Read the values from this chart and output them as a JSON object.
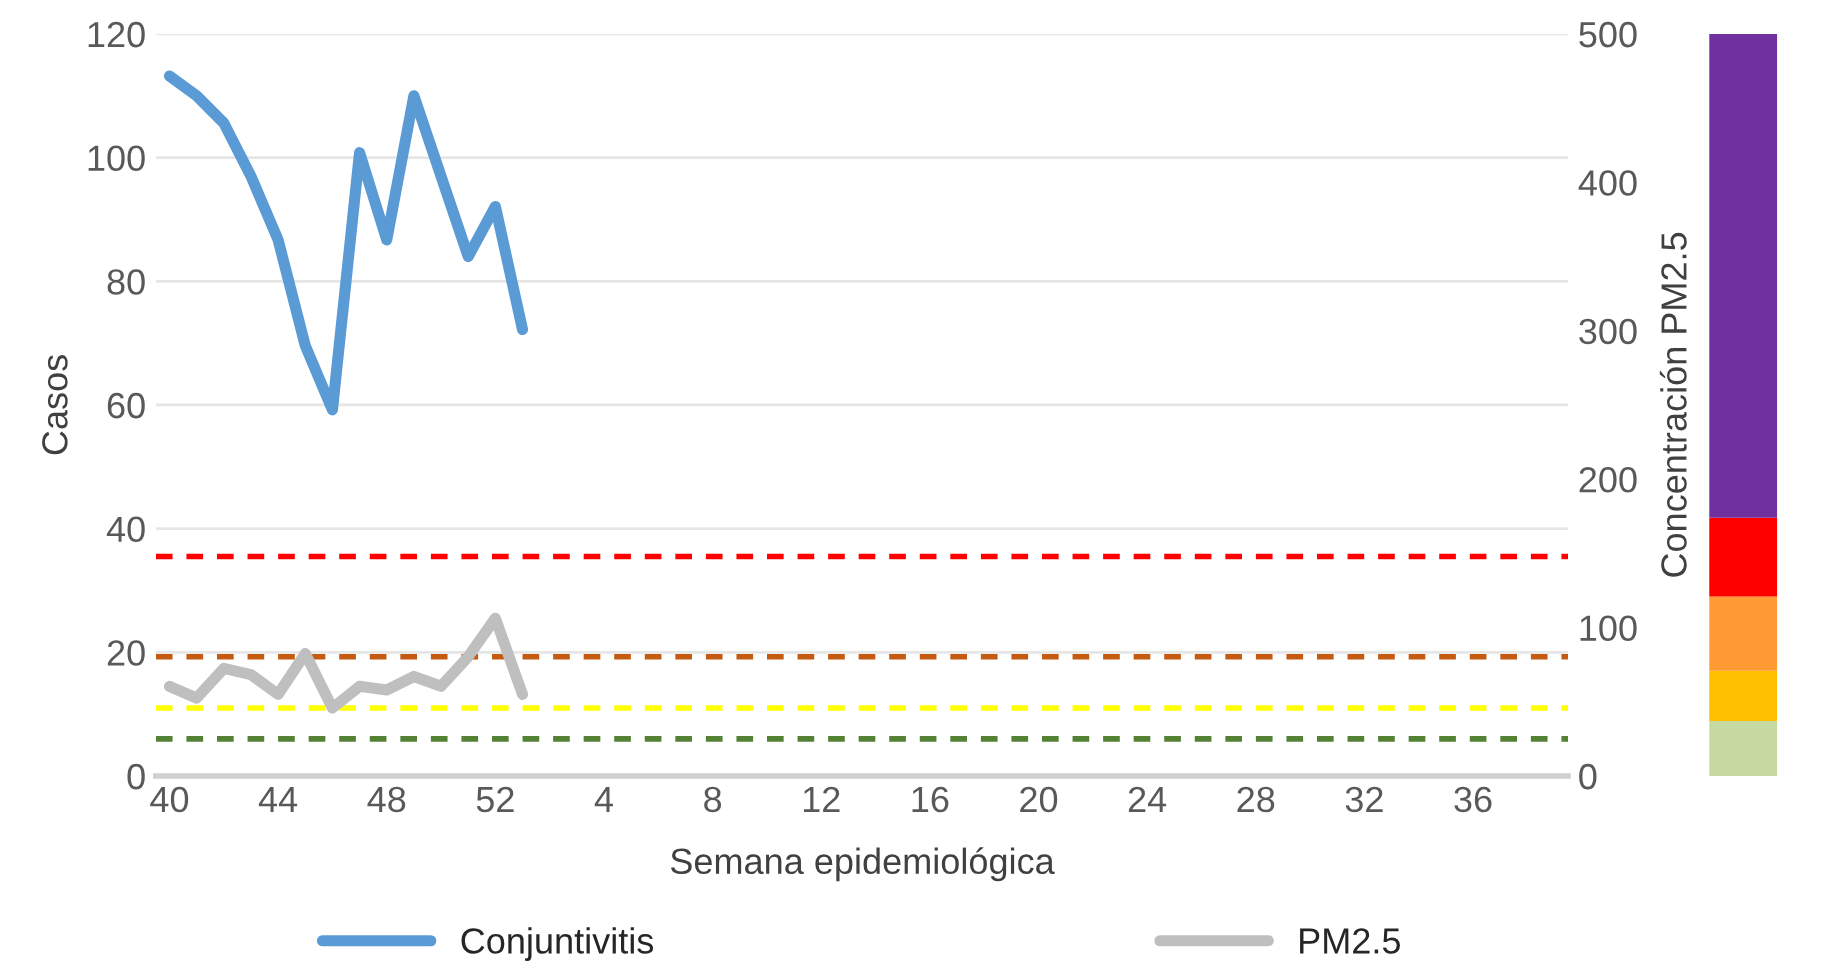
{
  "chart_data": {
    "type": "line",
    "xlabel": "Semana epidemiológica",
    "ylabel": "Casos",
    "y2label": "Concentración PM2.5",
    "categories": [
      "40",
      null,
      null,
      null,
      "44",
      null,
      null,
      null,
      "48",
      null,
      null,
      null,
      "52",
      null,
      null,
      null,
      "4",
      null,
      null,
      null,
      "8",
      null,
      null,
      null,
      "12",
      null,
      null,
      null,
      "16",
      null,
      null,
      null,
      "20",
      null,
      null,
      null,
      "24",
      null,
      null,
      null,
      "28",
      null,
      null,
      null,
      "32",
      null,
      null,
      null,
      "36",
      null,
      null,
      null
    ],
    "series": [
      {
        "name": "Conjuntivitis",
        "color": "#5b9bd5",
        "values": [
          113.2,
          110,
          105.6,
          97,
          86.7,
          69.6,
          59.2,
          100.8,
          86.7,
          110,
          97,
          84,
          92.1,
          72.2,
          null,
          null,
          null,
          null,
          null,
          null,
          null,
          null,
          null,
          null,
          null,
          null,
          null,
          null,
          null,
          null,
          null,
          null,
          null,
          null,
          null,
          null,
          null,
          null,
          null,
          null,
          null,
          null,
          null,
          null,
          null,
          null,
          null,
          null,
          null,
          null,
          null,
          null
        ]
      },
      {
        "name": "PM2.5",
        "color": "#bfbfbf",
        "values": [
          14.5,
          12.6,
          17.4,
          16.4,
          13.2,
          19.8,
          11,
          14.5,
          13.9,
          16.1,
          14.5,
          19.3,
          25.5,
          13.2,
          null,
          null,
          null,
          null,
          null,
          null,
          null,
          null,
          null,
          null,
          null,
          null,
          null,
          null,
          null,
          null,
          null,
          null,
          null,
          null,
          null,
          null,
          null,
          null,
          null,
          null,
          null,
          null,
          null,
          null,
          null,
          null,
          null,
          null,
          null,
          null,
          null,
          null
        ]
      }
    ],
    "ylim": [
      0,
      120
    ],
    "yticks": [
      0,
      20,
      40,
      60,
      80,
      100,
      120
    ],
    "y2lim": [
      0,
      500
    ],
    "y2ticks": [
      0,
      100,
      200,
      300,
      400,
      500
    ],
    "ref_lines": [
      {
        "axis": "y",
        "value": 35.5,
        "color": "#ff0000",
        "line_style": "dashed"
      },
      {
        "axis": "y",
        "value": 19.3,
        "color": "#c55a11",
        "line_style": "dashed"
      },
      {
        "axis": "y",
        "value": 11,
        "color": "#ffff00",
        "line_style": "dashed"
      },
      {
        "axis": "y",
        "value": 6,
        "color": "#548235",
        "line_style": "dashed"
      }
    ],
    "grid": "y",
    "legend": "bottom",
    "line_style": "solid",
    "marker": "none"
  }
}
